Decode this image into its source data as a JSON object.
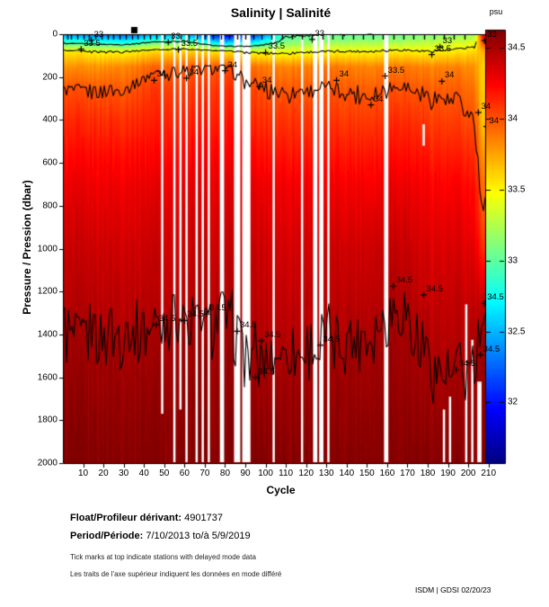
{
  "chart_data": {
    "type": "heatmap",
    "title": "Salinity | Salinité",
    "xlabel": "Cycle",
    "ylabel": "Pressure / Pression (dbar)",
    "x_ticks": [
      10,
      20,
      30,
      40,
      50,
      60,
      70,
      80,
      90,
      100,
      110,
      120,
      130,
      140,
      150,
      160,
      170,
      180,
      190,
      200,
      210
    ],
    "x_range": [
      0,
      215
    ],
    "y_ticks": [
      0,
      200,
      400,
      600,
      800,
      1000,
      1200,
      1400,
      1600,
      1800,
      2000
    ],
    "y_range": [
      0,
      2000
    ],
    "y_axis_reversed": true,
    "colormap": "jet",
    "colorbar": {
      "label": "psu",
      "ticks": [
        34.5,
        34,
        33.5,
        33,
        32.5,
        32
      ],
      "range": [
        31.57,
        34.63
      ]
    },
    "profiles": {
      "depths": [
        0,
        40,
        80,
        150,
        250,
        400,
        700,
        1000,
        1250,
        1400,
        1600,
        2000
      ],
      "cycles": [
        1,
        15,
        30,
        44,
        60,
        80,
        93,
        110,
        130,
        150,
        165,
        180,
        195,
        203,
        207,
        212
      ],
      "salinity": [
        [
          32.4,
          32.95,
          33.55,
          33.8,
          33.99,
          34.12,
          34.3,
          34.4,
          34.46,
          34.5,
          34.55,
          34.62
        ],
        [
          32.3,
          32.9,
          33.5,
          33.8,
          33.99,
          34.12,
          34.3,
          34.4,
          34.46,
          34.5,
          34.55,
          34.62
        ],
        [
          32.25,
          32.85,
          33.5,
          33.85,
          33.99,
          34.12,
          34.3,
          34.4,
          34.46,
          34.5,
          34.55,
          34.62
        ],
        [
          32.45,
          33.05,
          33.6,
          33.95,
          34.08,
          34.16,
          34.32,
          34.41,
          34.47,
          34.51,
          34.56,
          34.62
        ],
        [
          32.5,
          33.1,
          33.65,
          33.98,
          34.08,
          34.16,
          34.32,
          34.41,
          34.47,
          34.52,
          34.56,
          34.62
        ],
        [
          31.85,
          32.6,
          33.55,
          34.0,
          34.1,
          34.18,
          34.33,
          34.42,
          34.48,
          34.52,
          34.56,
          34.62
        ],
        [
          32.05,
          32.7,
          33.45,
          33.9,
          34.02,
          34.12,
          34.3,
          34.4,
          34.44,
          34.47,
          34.52,
          34.62
        ],
        [
          32.95,
          33.15,
          33.45,
          33.85,
          33.98,
          34.1,
          34.28,
          34.38,
          34.44,
          34.47,
          34.53,
          34.62
        ],
        [
          33.0,
          33.2,
          33.5,
          33.9,
          34.0,
          34.1,
          34.28,
          34.4,
          34.46,
          34.49,
          34.54,
          34.62
        ],
        [
          33.0,
          33.25,
          33.5,
          33.85,
          33.97,
          34.08,
          34.28,
          34.4,
          34.46,
          34.5,
          34.55,
          34.62
        ],
        [
          33.05,
          33.25,
          33.55,
          33.9,
          34.02,
          34.14,
          34.32,
          34.44,
          34.51,
          34.54,
          34.57,
          34.62
        ],
        [
          33.1,
          33.3,
          33.5,
          33.85,
          33.97,
          34.08,
          34.26,
          34.36,
          34.43,
          34.47,
          34.52,
          34.61
        ],
        [
          33.15,
          33.35,
          33.55,
          33.85,
          33.95,
          34.05,
          34.25,
          34.35,
          34.42,
          34.45,
          34.5,
          34.6
        ],
        [
          33.2,
          33.4,
          33.6,
          33.8,
          33.9,
          34.0,
          34.2,
          34.32,
          34.42,
          34.48,
          34.52,
          34.6
        ],
        [
          34.3,
          34.0,
          33.7,
          33.6,
          33.6,
          33.65,
          33.9,
          34.1,
          34.42,
          34.52,
          34.55,
          34.6
        ],
        [
          34.2,
          34.05,
          33.85,
          33.7,
          33.65,
          33.7,
          33.95,
          34.2,
          34.46,
          34.53,
          34.56,
          34.6
        ]
      ]
    },
    "contour_levels": [
      33,
      33.5,
      34,
      34.5
    ],
    "contour_labels": [
      {
        "text": "33",
        "cycle": 14,
        "pressure": 28
      },
      {
        "text": "33",
        "cycle": 52,
        "pressure": 38
      },
      {
        "text": "33",
        "cycle": 123,
        "pressure": 25
      },
      {
        "text": "33",
        "cycle": 186,
        "pressure": 60
      },
      {
        "text": "33",
        "cycle": 208,
        "pressure": 30
      },
      {
        "text": "33.5",
        "cycle": 9,
        "pressure": 70
      },
      {
        "text": "33.5",
        "cycle": 57,
        "pressure": 72
      },
      {
        "text": "33.5",
        "cycle": 100,
        "pressure": 85
      },
      {
        "text": "33.5",
        "cycle": 159,
        "pressure": 195
      },
      {
        "text": "33.5",
        "cycle": 182,
        "pressure": 95
      },
      {
        "text": "34",
        "cycle": 45,
        "pressure": 215
      },
      {
        "text": "34",
        "cycle": 61,
        "pressure": 205
      },
      {
        "text": "34",
        "cycle": 80,
        "pressure": 170
      },
      {
        "text": "34",
        "cycle": 97,
        "pressure": 245
      },
      {
        "text": "34",
        "cycle": 135,
        "pressure": 215
      },
      {
        "text": "34",
        "cycle": 152,
        "pressure": 330
      },
      {
        "text": "34",
        "cycle": 187,
        "pressure": 220
      },
      {
        "text": "34",
        "cycle": 205,
        "pressure": 365
      },
      {
        "text": "34",
        "cycle": 209,
        "pressure": 430
      },
      {
        "text": "34.5",
        "cycle": 46,
        "pressure": 1355
      },
      {
        "text": "34.5",
        "cycle": 60,
        "pressure": 1335
      },
      {
        "text": "34.5",
        "cycle": 71,
        "pressure": 1305
      },
      {
        "text": "34.5",
        "cycle": 86,
        "pressure": 1385
      },
      {
        "text": "34.5",
        "cycle": 95,
        "pressure": 1600
      },
      {
        "text": "34.5",
        "cycle": 98,
        "pressure": 1430
      },
      {
        "text": "34.5",
        "cycle": 127,
        "pressure": 1450
      },
      {
        "text": "34.5",
        "cycle": 163,
        "pressure": 1175
      },
      {
        "text": "34.5",
        "cycle": 178,
        "pressure": 1215
      },
      {
        "text": "34.5",
        "cycle": 194,
        "pressure": 1565
      },
      {
        "text": "34.5",
        "cycle": 206,
        "pressure": 1495
      },
      {
        "text": "34.5",
        "cycle": 208,
        "pressure": 1255
      }
    ],
    "missing_data_stripes": [
      {
        "cycles": [
          49,
          49
        ],
        "pressure": [
          0,
          1770
        ]
      },
      {
        "cycles": [
          55,
          55
        ],
        "pressure": [
          0,
          2000
        ]
      },
      {
        "cycles": [
          58,
          58
        ],
        "pressure": [
          0,
          1750
        ]
      },
      {
        "cycles": [
          61,
          61
        ],
        "pressure": [
          0,
          2000
        ]
      },
      {
        "cycles": [
          66,
          66
        ],
        "pressure": [
          0,
          2000
        ]
      },
      {
        "cycles": [
          69,
          69
        ],
        "pressure": [
          0,
          2000
        ]
      },
      {
        "cycles": [
          72,
          72
        ],
        "pressure": [
          0,
          2000
        ]
      },
      {
        "cycles": [
          78,
          79
        ],
        "pressure": [
          0,
          2000
        ]
      },
      {
        "cycles": [
          85,
          87
        ],
        "pressure": [
          0,
          2000
        ]
      },
      {
        "cycles": [
          89,
          92
        ],
        "pressure": [
          0,
          2000
        ]
      },
      {
        "cycles": [
          104,
          104
        ],
        "pressure": [
          0,
          2000
        ]
      },
      {
        "cycles": [
          118,
          118
        ],
        "pressure": [
          0,
          2000
        ]
      },
      {
        "cycles": [
          124,
          125
        ],
        "pressure": [
          0,
          2000
        ]
      },
      {
        "cycles": [
          127,
          128
        ],
        "pressure": [
          0,
          2000
        ]
      },
      {
        "cycles": [
          131,
          131
        ],
        "pressure": [
          0,
          2000
        ]
      },
      {
        "cycles": [
          159,
          160
        ],
        "pressure": [
          0,
          2000
        ]
      },
      {
        "cycles": [
          178,
          178
        ],
        "pressure": [
          420,
          520
        ]
      },
      {
        "cycles": [
          188,
          188
        ],
        "pressure": [
          1750,
          2000
        ]
      },
      {
        "cycles": [
          191,
          191
        ],
        "pressure": [
          1690,
          2000
        ]
      },
      {
        "cycles": [
          199,
          199
        ],
        "pressure": [
          1260,
          2000
        ]
      },
      {
        "cycles": [
          202,
          202
        ],
        "pressure": [
          1425,
          2000
        ]
      },
      {
        "cycles": [
          205,
          206
        ],
        "pressure": [
          1620,
          2000
        ]
      }
    ],
    "delayed_mode_tick_cycles": [
      2,
      4,
      7,
      10,
      13,
      16,
      19,
      22,
      25,
      28,
      31,
      34,
      37,
      40,
      43,
      46,
      50,
      54,
      58,
      62,
      66,
      70,
      74,
      78,
      82,
      86,
      90,
      94,
      98,
      103,
      108,
      113,
      118,
      123,
      128,
      133,
      138,
      143,
      148,
      153,
      158,
      163,
      168,
      173,
      178,
      183,
      188,
      193,
      198
    ],
    "delayed_mode_marker_cycle": 35
  },
  "footer": {
    "float_label": "Float/Profileur dérivant:",
    "float_value": "4901737",
    "period_label": "Period/Période:",
    "period_value": "7/10/2013  to/à  5/9/2019",
    "note_en": "Tick marks at top indicate stations with delayed mode data",
    "note_fr": "Les traits de l'axe supérieur indiquent les données en mode différé",
    "credit": "ISDM | GDSI  02/20/23"
  }
}
